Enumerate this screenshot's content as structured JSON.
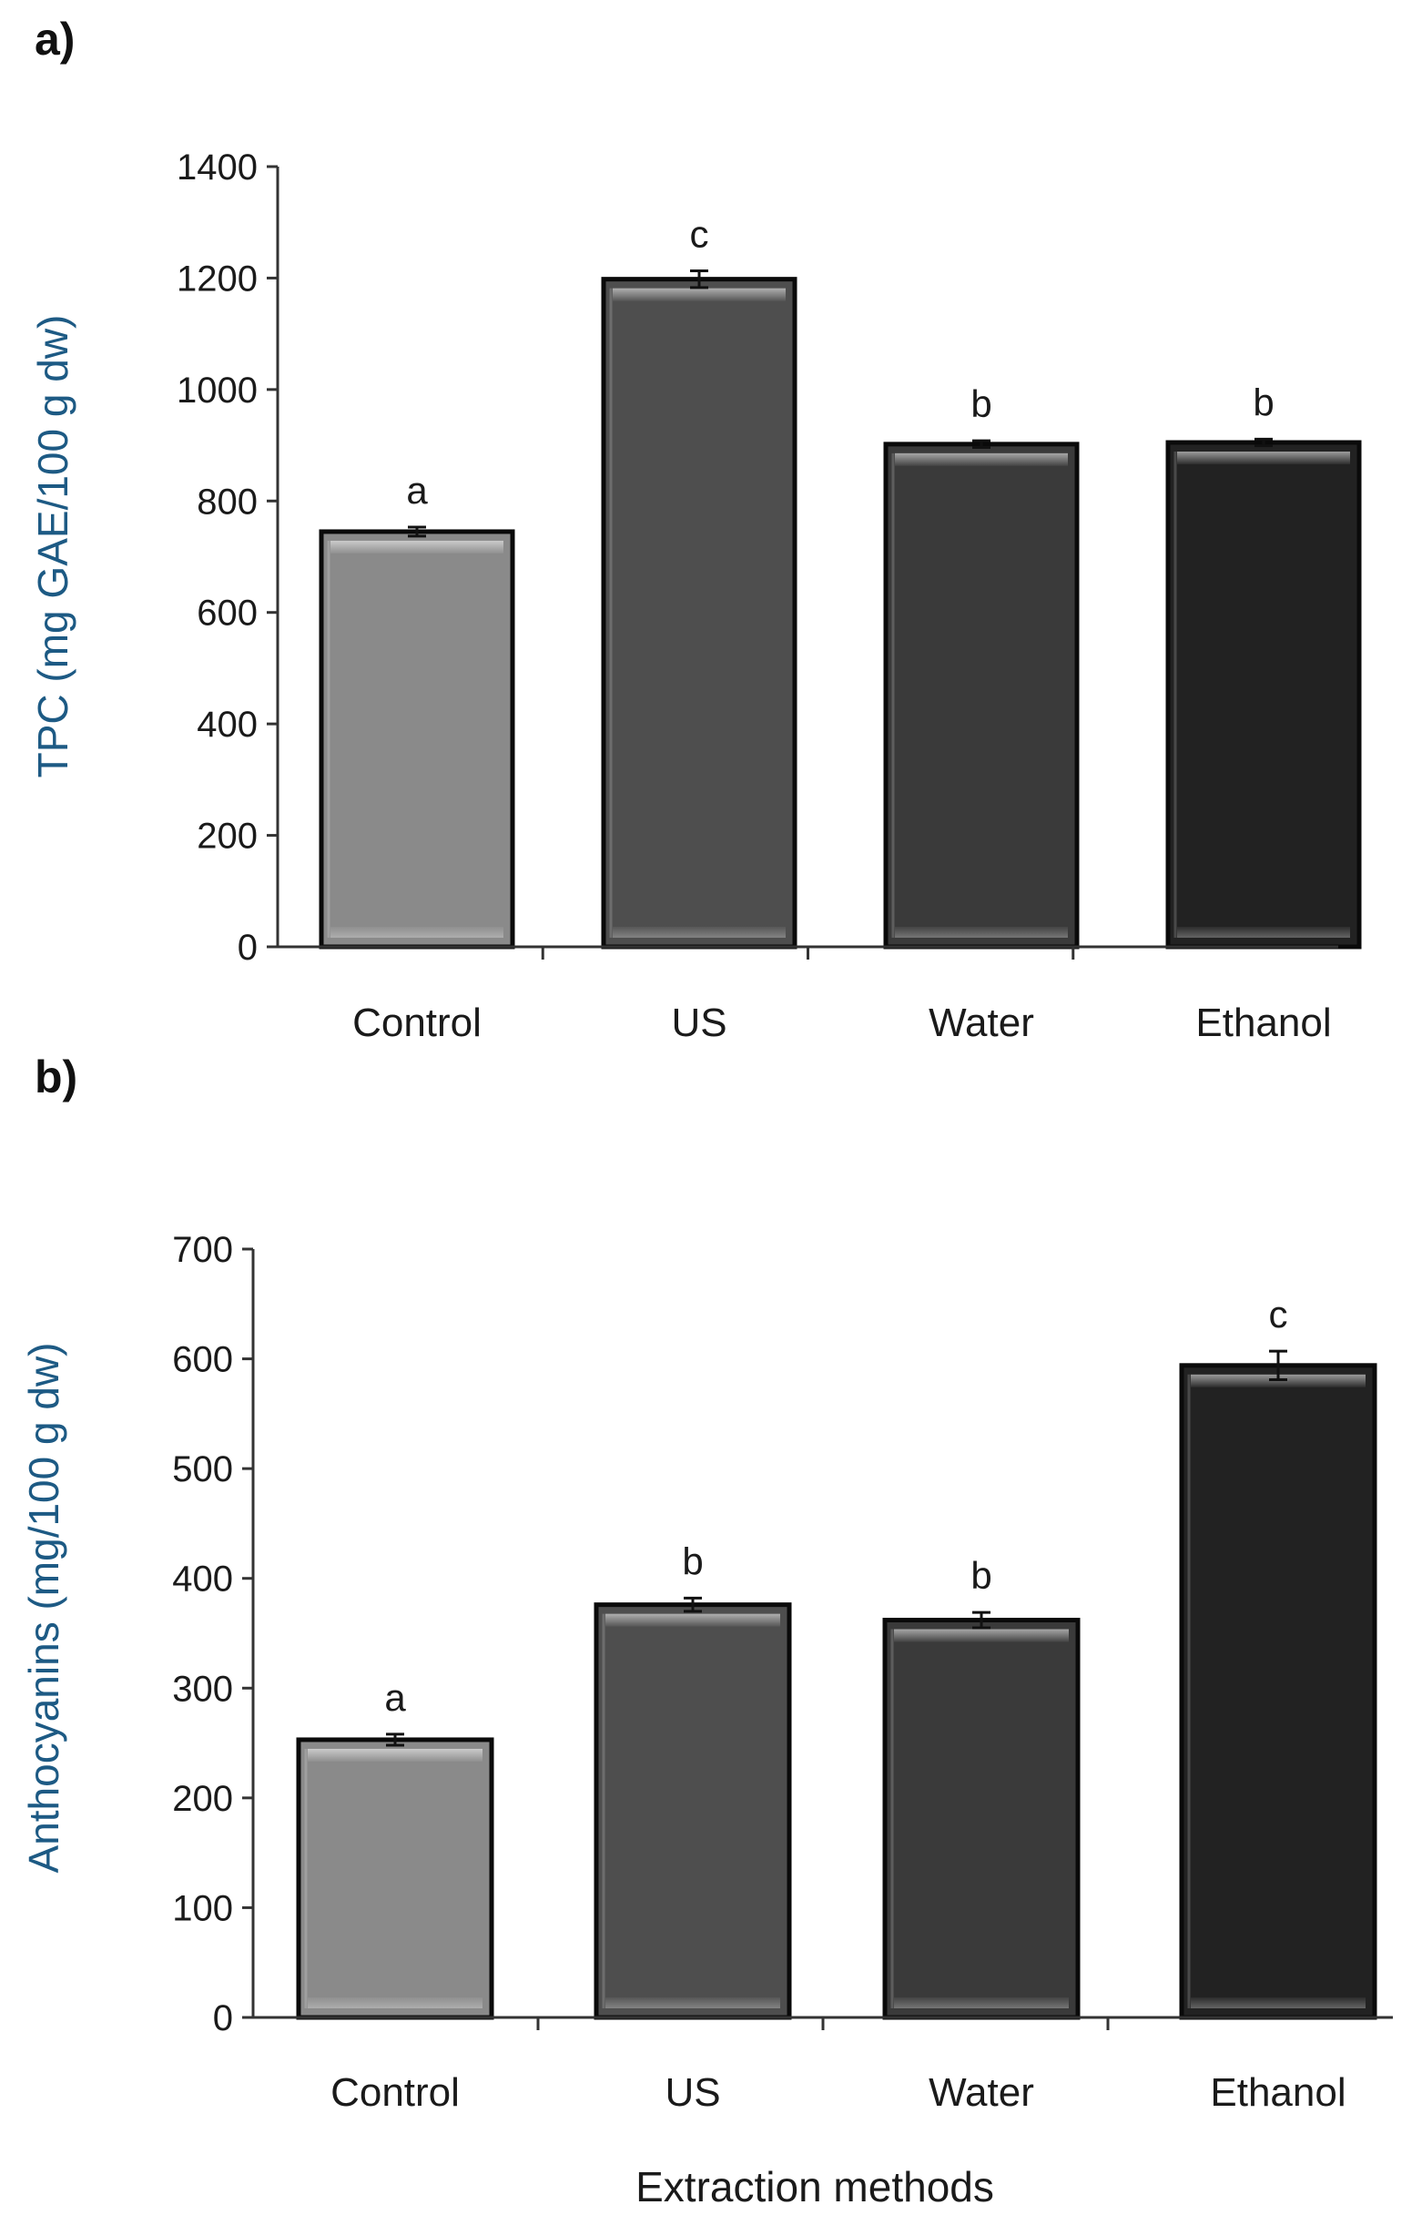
{
  "figure": {
    "x_title": "Extraction methods"
  },
  "chart_data": [
    {
      "type": "bar",
      "panel": "a)",
      "categories": [
        "Control",
        "US",
        "Water",
        "Ethanol"
      ],
      "values": [
        745,
        1198,
        902,
        905
      ],
      "errors": [
        8,
        15,
        6,
        6
      ],
      "significance": [
        "a",
        "c",
        "b",
        "b"
      ],
      "ylabel": "TPC (mg GAE/100 g dw)",
      "xlabel": "",
      "ylim": [
        0,
        1400
      ],
      "yticks": [
        0,
        200,
        400,
        600,
        800,
        1000,
        1200,
        1400
      ],
      "grid": false
    },
    {
      "type": "bar",
      "panel": "b)",
      "categories": [
        "Control",
        "US",
        "Water",
        "Ethanol"
      ],
      "values": [
        253,
        376,
        362,
        594
      ],
      "errors": [
        5,
        6,
        7,
        13
      ],
      "significance": [
        "a",
        "b",
        "b",
        "c"
      ],
      "ylabel": "Anthocyanins (mg/100 g dw)",
      "xlabel": "Extraction methods",
      "ylim": [
        0,
        700
      ],
      "yticks": [
        0,
        100,
        200,
        300,
        400,
        500,
        600,
        700
      ],
      "grid": false
    }
  ],
  "colors": {
    "bars": [
      "#8a8a8a",
      "#4e4e4e",
      "#3a3a3a",
      "#222222"
    ],
    "ylabel": "#1d5a84",
    "axis": "#333333"
  }
}
